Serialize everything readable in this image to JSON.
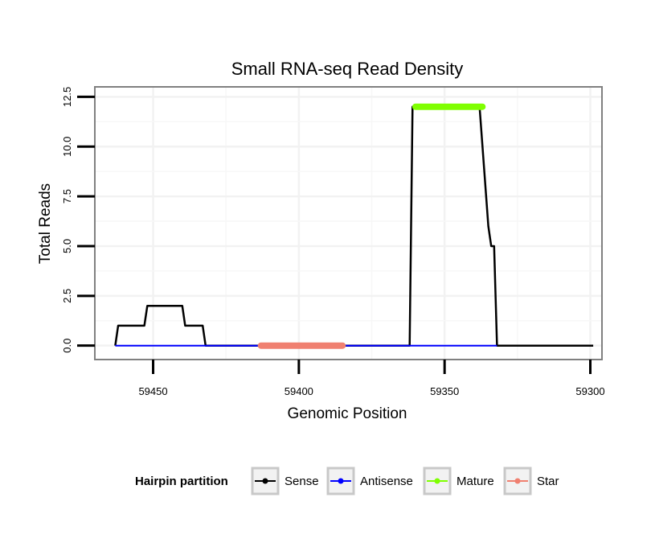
{
  "chart_data": {
    "type": "line",
    "title": "Small RNA-seq Read Density",
    "xlabel": "Genomic Position",
    "ylabel": "Total Reads",
    "x_reversed": true,
    "xlim": [
      59470,
      59296
    ],
    "ylim": [
      -0.7,
      13.0
    ],
    "x_ticks": [
      59450,
      59400,
      59350,
      59300
    ],
    "x_tick_labels": [
      "59450",
      "59400",
      "59350",
      "59300"
    ],
    "y_ticks": [
      0.0,
      2.5,
      5.0,
      7.5,
      10.0,
      12.5
    ],
    "y_tick_labels": [
      "0.0",
      "2.5",
      "5.0",
      "7.5",
      "10.0",
      "12.5"
    ],
    "grid": true,
    "legend": {
      "title": "Hairpin partition",
      "position": "bottom",
      "entries": [
        {
          "name": "Sense",
          "color": "#000000"
        },
        {
          "name": "Antisense",
          "color": "#0000FF"
        },
        {
          "name": "Mature",
          "color": "#7FFF00"
        },
        {
          "name": "Star",
          "color": "#F08070"
        }
      ]
    },
    "series": [
      {
        "name": "Sense",
        "color": "#000000",
        "width": 2.5,
        "points": [
          [
            59463,
            0
          ],
          [
            59462,
            1
          ],
          [
            59453,
            1
          ],
          [
            59452,
            2
          ],
          [
            59440,
            2
          ],
          [
            59439,
            1
          ],
          [
            59433,
            1
          ],
          [
            59432,
            0
          ],
          [
            59362,
            0
          ],
          [
            59361,
            12
          ],
          [
            59338,
            12
          ],
          [
            59335,
            6
          ],
          [
            59334,
            5
          ],
          [
            59333,
            5
          ],
          [
            59332,
            0
          ],
          [
            59299,
            0
          ]
        ]
      },
      {
        "name": "Antisense",
        "color": "#0000FF",
        "width": 2,
        "points": [
          [
            59463,
            0
          ],
          [
            59332,
            0
          ]
        ]
      },
      {
        "name": "Star",
        "color": "#F08070",
        "width": 8,
        "points": [
          [
            59413,
            0
          ],
          [
            59385,
            0
          ]
        ]
      },
      {
        "name": "Mature",
        "color": "#7FFF00",
        "width": 8,
        "points": [
          [
            59360,
            12
          ],
          [
            59337,
            12
          ]
        ]
      }
    ]
  }
}
